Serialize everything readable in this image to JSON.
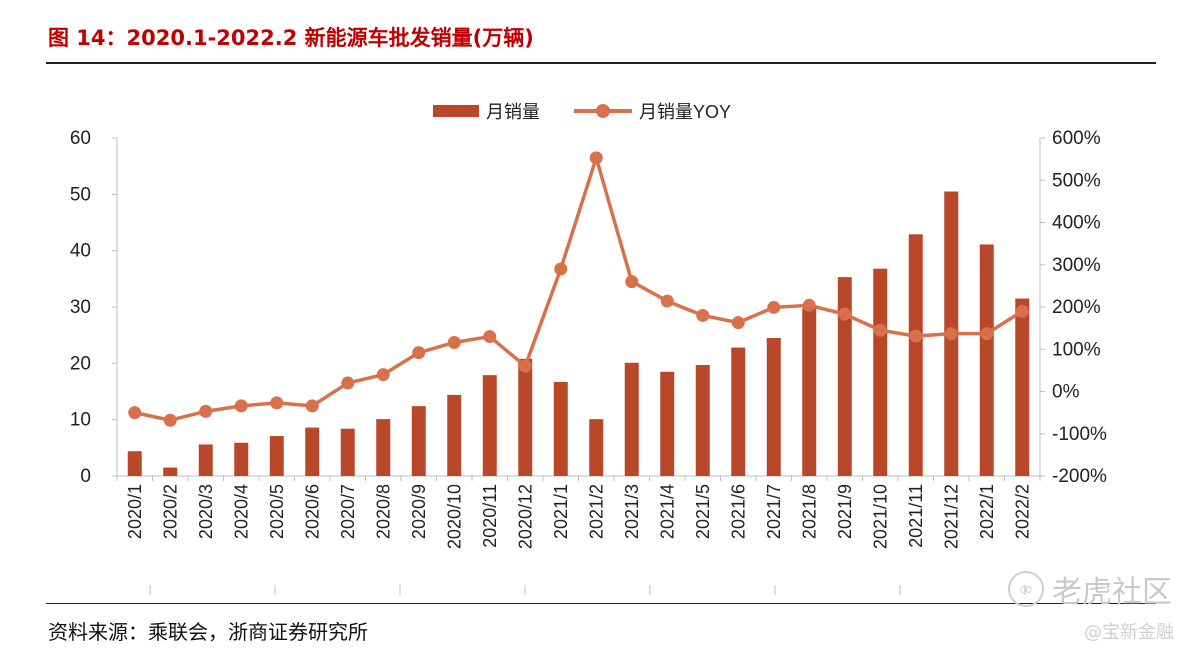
{
  "header": {
    "title": "图 14：2020.1-2022.2 新能源车批发销量(万辆)"
  },
  "footer": {
    "source": "资料来源：乘联会，浙商证券研究所"
  },
  "watermark": {
    "main": "老虎社区",
    "sub": "@宝新金融",
    "icon": "tiger-logo-icon"
  },
  "colors": {
    "bar": "#B9482A",
    "line": "#D9704C",
    "title": "#C00000"
  },
  "chart_data": {
    "type": "bar",
    "categories": [
      "2020/1",
      "2020/2",
      "2020/3",
      "2020/4",
      "2020/5",
      "2020/6",
      "2020/7",
      "2020/8",
      "2020/9",
      "2020/10",
      "2020/11",
      "2020/12",
      "2021/1",
      "2021/2",
      "2021/3",
      "2021/4",
      "2021/5",
      "2021/6",
      "2021/7",
      "2021/8",
      "2021/9",
      "2021/10",
      "2021/11",
      "2021/12",
      "2022/1",
      "2022/2"
    ],
    "series": [
      {
        "name": "月销量",
        "type": "bar",
        "axis": "left",
        "values": [
          4.4,
          1.5,
          5.6,
          5.9,
          7.1,
          8.6,
          8.4,
          10.1,
          12.4,
          14.4,
          17.9,
          20.8,
          16.7,
          10.1,
          20.1,
          18.5,
          19.7,
          22.8,
          24.5,
          29.8,
          35.3,
          36.8,
          42.9,
          50.5,
          41.1,
          31.5
        ]
      },
      {
        "name": "月销量YOY",
        "type": "line",
        "axis": "right",
        "values": [
          -50,
          -68,
          -47,
          -34,
          -27,
          -34,
          20,
          40,
          92,
          116,
          130,
          60,
          290,
          553,
          260,
          214,
          180,
          163,
          199,
          204,
          183,
          145,
          131,
          137,
          137,
          190
        ]
      }
    ],
    "ylim_left": [
      0,
      60
    ],
    "yticks_left": [
      "0",
      "10",
      "20",
      "30",
      "40",
      "50",
      "60"
    ],
    "ylim_right": [
      -200,
      600
    ],
    "yticks_right": [
      "-200%",
      "-100%",
      "0%",
      "100%",
      "200%",
      "300%",
      "400%",
      "500%",
      "600%"
    ],
    "legend_position": "top-center",
    "grid": false
  }
}
